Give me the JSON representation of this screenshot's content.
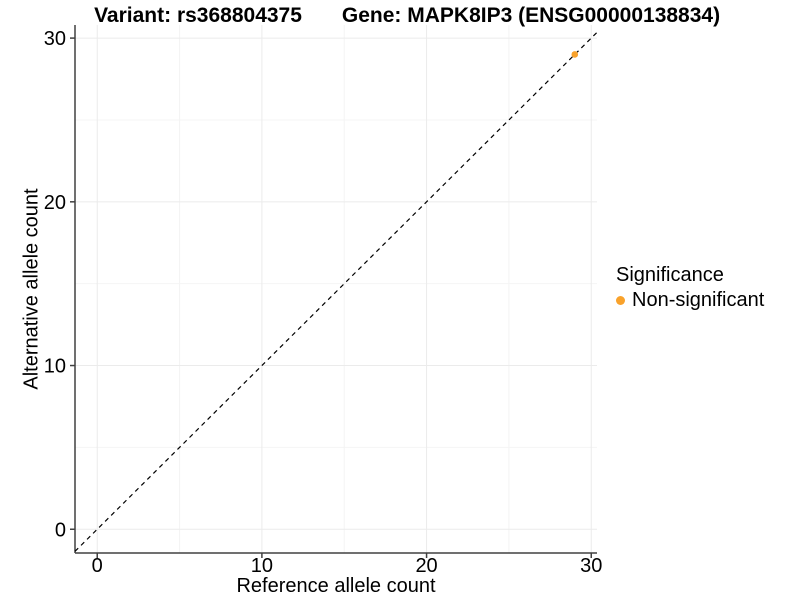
{
  "header": {
    "variant_title": "Variant: rs368804375",
    "gene_title": "Gene: MAPK8IP3 (ENSG00000138834)"
  },
  "chart_data": {
    "type": "scatter",
    "title": "Variant: rs368804375 | Gene: MAPK8IP3 (ENSG00000138834)",
    "xlabel": "Reference allele count",
    "ylabel": "Alternative allele count",
    "xlim": [
      -1.35,
      30.35
    ],
    "ylim": [
      -1.45,
      30.8
    ],
    "x_ticks": [
      0,
      10,
      20,
      30
    ],
    "y_ticks": [
      0,
      10,
      20,
      30
    ],
    "x_minor_gridlines": [
      5,
      15,
      25
    ],
    "y_minor_gridlines": [
      5,
      15,
      25
    ],
    "grid": true,
    "identity_line": {
      "slope": 1,
      "intercept": 0,
      "style": "dashed",
      "color": "#000000"
    },
    "series": [
      {
        "name": "Non-significant",
        "color": "#F9A22B",
        "points": [
          [
            29,
            29
          ]
        ]
      }
    ],
    "legend": {
      "title": "Significance",
      "position": "right",
      "entries": [
        {
          "label": "Non-significant",
          "color": "#F9A22B"
        }
      ]
    },
    "colors": {
      "axis_line": "#404040",
      "tick_mark": "#404040",
      "major_grid": "#EBEBEB",
      "minor_grid": "#F4F4F4",
      "text": "#000000",
      "background": "#FFFFFF"
    }
  }
}
